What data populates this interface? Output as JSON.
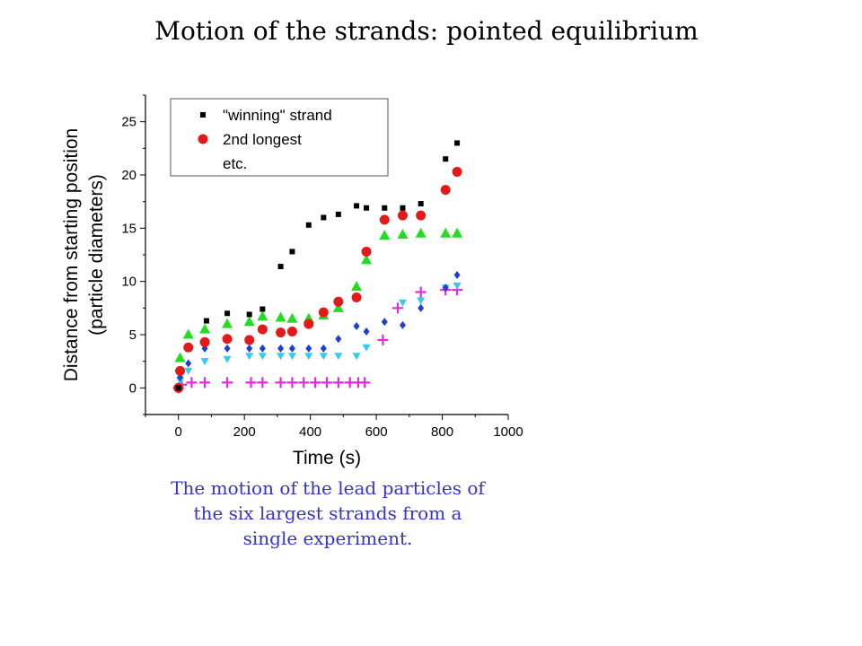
{
  "slide": {
    "title": "Motion of the strands: pointed equilibrium",
    "caption": "The motion of the lead particles of the six largest strands from a single experiment."
  },
  "chart_data": {
    "type": "scatter",
    "xlabel": "Time (s)",
    "ylabel_lines": [
      "Distance from starting position",
      "(particle diameters)"
    ],
    "xlim": [
      -100,
      1000
    ],
    "ylim": [
      -2.5,
      27.5
    ],
    "xticks": [
      0,
      200,
      400,
      600,
      800,
      1000
    ],
    "yticks": [
      0,
      5,
      10,
      15,
      20,
      25
    ],
    "grid": false,
    "legend_position": "top-left",
    "legend": [
      "\"winning\" strand",
      "2nd longest",
      "etc."
    ],
    "series": [
      {
        "marker": "square",
        "color": "#000000",
        "x": [
          0,
          85,
          148,
          215,
          255,
          310,
          345,
          395,
          440,
          485,
          540,
          570,
          625,
          680,
          735,
          810,
          845
        ],
        "y": [
          0,
          6.3,
          7.0,
          6.9,
          7.4,
          11.4,
          12.8,
          15.3,
          16.0,
          16.3,
          17.1,
          16.9,
          16.9,
          16.9,
          17.3,
          21.5,
          23.0
        ]
      },
      {
        "marker": "circle",
        "color": "#e31a1a",
        "x": [
          0,
          5,
          30,
          80,
          148,
          215,
          255,
          310,
          345,
          395,
          440,
          485,
          540,
          570,
          625,
          680,
          735,
          810,
          845
        ],
        "y": [
          0,
          1.6,
          3.8,
          4.3,
          4.6,
          4.5,
          5.5,
          5.2,
          5.3,
          6.0,
          7.1,
          8.1,
          8.5,
          12.8,
          15.8,
          16.2,
          16.2,
          18.6,
          20.3
        ]
      },
      {
        "marker": "triangle-up",
        "color": "#22dd22",
        "x": [
          5,
          30,
          80,
          148,
          215,
          255,
          310,
          345,
          395,
          440,
          485,
          540,
          570,
          625,
          680,
          735,
          810,
          845
        ],
        "y": [
          2.8,
          5.0,
          5.5,
          6.0,
          6.2,
          6.7,
          6.6,
          6.5,
          6.5,
          6.8,
          7.5,
          9.5,
          12.0,
          14.3,
          14.4,
          14.5,
          14.5,
          14.5
        ]
      },
      {
        "marker": "diamond",
        "color": "#1f3fd0",
        "x": [
          0,
          5,
          30,
          80,
          148,
          215,
          255,
          310,
          345,
          395,
          440,
          485,
          540,
          570,
          625,
          680,
          735,
          810,
          845
        ],
        "y": [
          0,
          1.0,
          2.3,
          3.7,
          3.7,
          3.7,
          3.7,
          3.7,
          3.7,
          3.7,
          3.7,
          4.6,
          5.8,
          5.3,
          6.2,
          5.9,
          7.5,
          9.4,
          10.6
        ]
      },
      {
        "marker": "triangle-down",
        "color": "#33ccee",
        "x": [
          0,
          5,
          30,
          80,
          148,
          215,
          255,
          310,
          345,
          395,
          440,
          485,
          540,
          570,
          680,
          735,
          810,
          845
        ],
        "y": [
          -0.2,
          0.7,
          1.6,
          2.5,
          2.7,
          3.0,
          3.0,
          3.0,
          3.0,
          3.0,
          3.0,
          3.0,
          3.0,
          3.8,
          8.0,
          8.2,
          9.4,
          9.6
        ]
      },
      {
        "marker": "plus",
        "color": "#e22ae0",
        "x": [
          0,
          10,
          40,
          80,
          148,
          220,
          255,
          310,
          345,
          380,
          415,
          450,
          485,
          520,
          545,
          565,
          620,
          665,
          735,
          810,
          845
        ],
        "y": [
          0,
          0.3,
          0.5,
          0.5,
          0.5,
          0.5,
          0.5,
          0.5,
          0.5,
          0.5,
          0.5,
          0.5,
          0.5,
          0.5,
          0.5,
          0.5,
          4.5,
          7.5,
          9.0,
          9.2,
          9.2
        ]
      }
    ]
  }
}
